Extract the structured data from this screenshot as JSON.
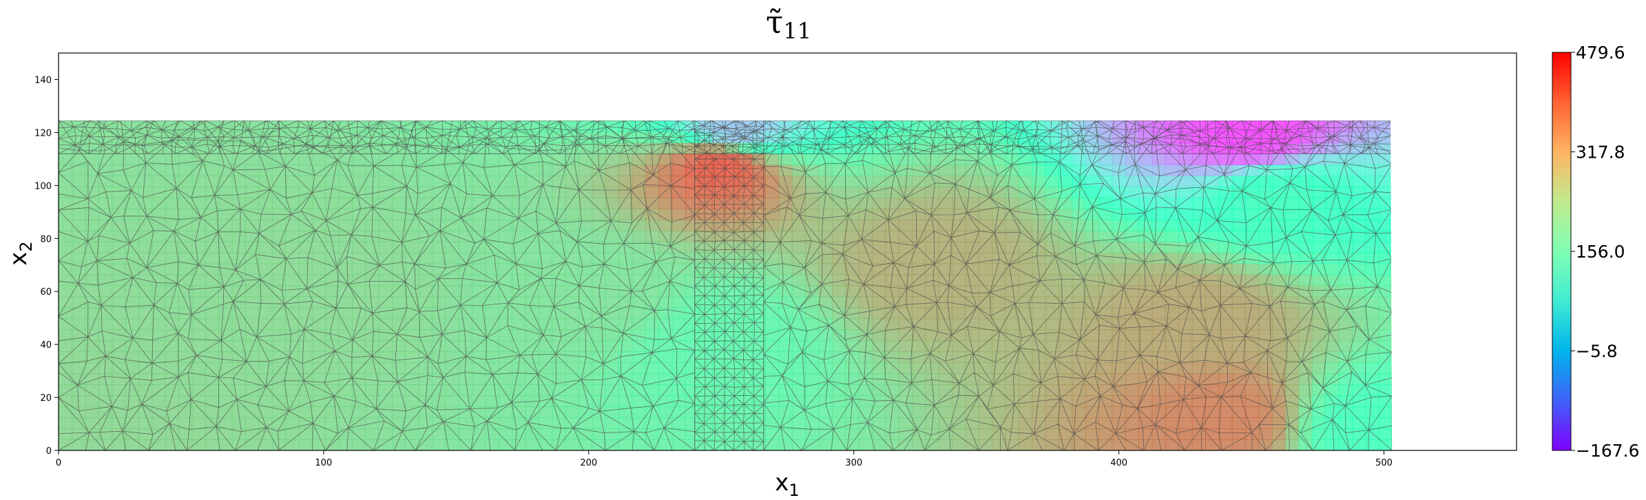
{
  "chart_data": {
    "type": "heatmap",
    "title": {
      "main": "τ̃",
      "subscript": "11"
    },
    "xlabel": {
      "main": "x",
      "subscript": "1"
    },
    "ylabel": {
      "main": "x",
      "subscript": "2"
    },
    "xlim": [
      0,
      550
    ],
    "ylim": [
      0,
      150
    ],
    "x_ticks": [
      0,
      100,
      200,
      300,
      400,
      500
    ],
    "x_tick_labels": [
      "0",
      "100",
      "200",
      "300",
      "400",
      "500"
    ],
    "y_ticks": [
      0,
      20,
      40,
      60,
      80,
      100,
      120,
      140
    ],
    "y_tick_labels": [
      "0",
      "20",
      "40",
      "60",
      "80",
      "100",
      "120",
      "140"
    ],
    "domain": {
      "x": [
        0,
        503
      ],
      "y": [
        0,
        124.5
      ]
    },
    "colormap": "rainbow",
    "colorbar": {
      "min": -167.6,
      "max": 479.6,
      "ticks": [
        479.6,
        317.8,
        156.0,
        -5.8,
        -167.6
      ],
      "tick_labels": [
        "479.6",
        "317.8",
        "156.0",
        "−5.8",
        "−167.6"
      ]
    },
    "field_samples": [
      {
        "x": 0,
        "y": 0,
        "value": 290
      },
      {
        "x": 100,
        "y": 60,
        "value": 285
      },
      {
        "x": 200,
        "y": 60,
        "value": 270
      },
      {
        "x": 250,
        "y": 40,
        "value": 220
      },
      {
        "x": 250,
        "y": 108,
        "value": 440
      },
      {
        "x": 330,
        "y": 70,
        "value": 350
      },
      {
        "x": 440,
        "y": 12,
        "value": 400
      },
      {
        "x": 430,
        "y": 50,
        "value": 360
      },
      {
        "x": 460,
        "y": 95,
        "value": 170
      },
      {
        "x": 450,
        "y": 120,
        "value": -150
      },
      {
        "x": 495,
        "y": 8,
        "value": 180
      },
      {
        "x": 255,
        "y": 122,
        "value": 0
      }
    ],
    "mesh_color": "#4a4a4a",
    "grid": false,
    "legend": "none"
  }
}
